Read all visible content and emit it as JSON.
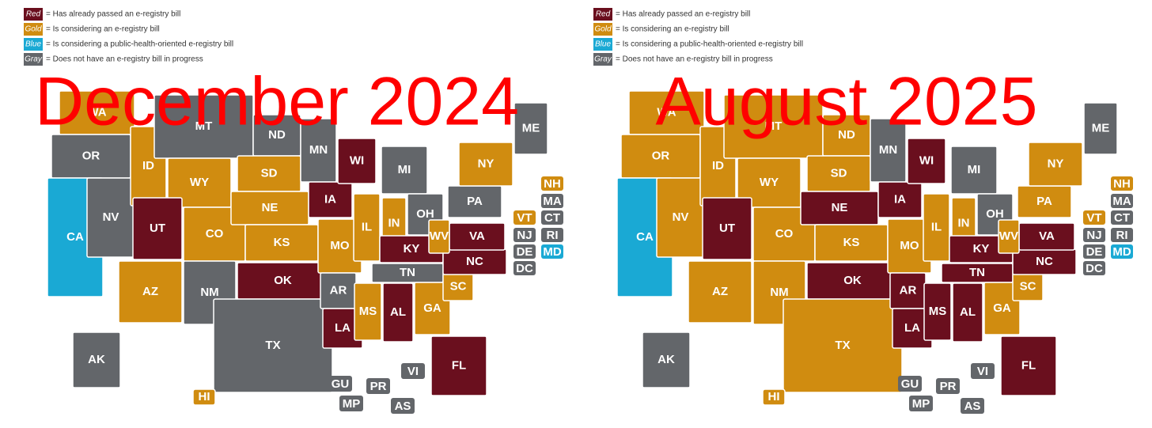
{
  "maps": [
    {
      "title": "December 2024",
      "legend": [
        {
          "label": "Red",
          "color": "#6a0f1e",
          "text": "= Has already passed an e-registry bill"
        },
        {
          "label": "Gold",
          "color": "#d08c10",
          "text": "= Is considering an e-registry bill"
        },
        {
          "label": "Blue",
          "color": "#1aa9d4",
          "text": "= Is considering a public-health-oriented e-registry bill"
        },
        {
          "label": "Gray",
          "color": "#63666a",
          "text": "= Does not have an e-registry bill in progress"
        }
      ],
      "states": [
        {
          "label": "WA",
          "status": "Gold"
        },
        {
          "label": "OR",
          "status": "Gray"
        },
        {
          "label": "CA",
          "status": "Blue"
        },
        {
          "label": "NV",
          "status": "Gray"
        },
        {
          "label": "ID",
          "status": "Gold"
        },
        {
          "label": "MT",
          "status": "Gray"
        },
        {
          "label": "WY",
          "status": "Gold"
        },
        {
          "label": "UT",
          "status": "Red"
        },
        {
          "label": "CO",
          "status": "Gold"
        },
        {
          "label": "AZ",
          "status": "Gold"
        },
        {
          "label": "NM",
          "status": "Gray"
        },
        {
          "label": "ND",
          "status": "Gray"
        },
        {
          "label": "SD",
          "status": "Gold"
        },
        {
          "label": "NE",
          "status": "Gold"
        },
        {
          "label": "KS",
          "status": "Gold"
        },
        {
          "label": "OK",
          "status": "Red"
        },
        {
          "label": "TX",
          "status": "Gray"
        },
        {
          "label": "MN",
          "status": "Gray"
        },
        {
          "label": "IA",
          "status": "Red"
        },
        {
          "label": "MO",
          "status": "Gold"
        },
        {
          "label": "AR",
          "status": "Gray"
        },
        {
          "label": "LA",
          "status": "Red"
        },
        {
          "label": "WI",
          "status": "Red"
        },
        {
          "label": "IL",
          "status": "Gold"
        },
        {
          "label": "IN",
          "status": "Gold"
        },
        {
          "label": "MI",
          "status": "Gray"
        },
        {
          "label": "OH",
          "status": "Gray"
        },
        {
          "label": "KY",
          "status": "Red"
        },
        {
          "label": "TN",
          "status": "Gray"
        },
        {
          "label": "MS",
          "status": "Gold"
        },
        {
          "label": "AL",
          "status": "Red"
        },
        {
          "label": "GA",
          "status": "Gold"
        },
        {
          "label": "FL",
          "status": "Red"
        },
        {
          "label": "SC",
          "status": "Gold"
        },
        {
          "label": "NC",
          "status": "Red"
        },
        {
          "label": "VA",
          "status": "Red"
        },
        {
          "label": "WV",
          "status": "Gold"
        },
        {
          "label": "PA",
          "status": "Gray"
        },
        {
          "label": "NY",
          "status": "Gold"
        },
        {
          "label": "ME",
          "status": "Gray"
        },
        {
          "label": "AK",
          "status": "Gray"
        },
        {
          "label": "HI",
          "status": "Gold"
        }
      ],
      "small_states": [
        {
          "label": "NH",
          "status": "Gold"
        },
        {
          "label": "MA",
          "status": "Gray"
        },
        {
          "label": "VT",
          "status": "Gold"
        },
        {
          "label": "CT",
          "status": "Gray"
        },
        {
          "label": "NJ",
          "status": "Gray"
        },
        {
          "label": "RI",
          "status": "Gray"
        },
        {
          "label": "DE",
          "status": "Gray"
        },
        {
          "label": "MD",
          "status": "Blue"
        },
        {
          "label": "DC",
          "status": "Gray"
        }
      ],
      "territories": [
        {
          "label": "GU",
          "status": "Gray"
        },
        {
          "label": "PR",
          "status": "Gray"
        },
        {
          "label": "VI",
          "status": "Gray"
        },
        {
          "label": "MP",
          "status": "Gray"
        },
        {
          "label": "AS",
          "status": "Gray"
        }
      ]
    },
    {
      "title": "August 2025",
      "legend": [
        {
          "label": "Red",
          "color": "#6a0f1e",
          "text": "= Has already passed an e-registry bill"
        },
        {
          "label": "Gold",
          "color": "#d08c10",
          "text": "= Is considering an e-registry bill"
        },
        {
          "label": "Blue",
          "color": "#1aa9d4",
          "text": "= Is considering a public-health-oriented e-registry bill"
        },
        {
          "label": "Gray",
          "color": "#63666a",
          "text": "= Does not have an e-registry bill in progress"
        }
      ],
      "states": [
        {
          "label": "WA",
          "status": "Gold"
        },
        {
          "label": "OR",
          "status": "Gold"
        },
        {
          "label": "CA",
          "status": "Blue"
        },
        {
          "label": "NV",
          "status": "Gold"
        },
        {
          "label": "ID",
          "status": "Gold"
        },
        {
          "label": "MT",
          "status": "Gold"
        },
        {
          "label": "WY",
          "status": "Gold"
        },
        {
          "label": "UT",
          "status": "Red"
        },
        {
          "label": "CO",
          "status": "Gold"
        },
        {
          "label": "AZ",
          "status": "Gold"
        },
        {
          "label": "NM",
          "status": "Gold"
        },
        {
          "label": "ND",
          "status": "Gold"
        },
        {
          "label": "SD",
          "status": "Gold"
        },
        {
          "label": "NE",
          "status": "Red"
        },
        {
          "label": "KS",
          "status": "Gold"
        },
        {
          "label": "OK",
          "status": "Red"
        },
        {
          "label": "TX",
          "status": "Gold"
        },
        {
          "label": "MN",
          "status": "Gray"
        },
        {
          "label": "IA",
          "status": "Red"
        },
        {
          "label": "MO",
          "status": "Gold"
        },
        {
          "label": "AR",
          "status": "Red"
        },
        {
          "label": "LA",
          "status": "Red"
        },
        {
          "label": "WI",
          "status": "Red"
        },
        {
          "label": "IL",
          "status": "Gold"
        },
        {
          "label": "IN",
          "status": "Gold"
        },
        {
          "label": "MI",
          "status": "Gray"
        },
        {
          "label": "OH",
          "status": "Gray"
        },
        {
          "label": "KY",
          "status": "Red"
        },
        {
          "label": "TN",
          "status": "Red"
        },
        {
          "label": "MS",
          "status": "Red"
        },
        {
          "label": "AL",
          "status": "Red"
        },
        {
          "label": "GA",
          "status": "Gold"
        },
        {
          "label": "FL",
          "status": "Red"
        },
        {
          "label": "SC",
          "status": "Gold"
        },
        {
          "label": "NC",
          "status": "Red"
        },
        {
          "label": "VA",
          "status": "Red"
        },
        {
          "label": "WV",
          "status": "Gold"
        },
        {
          "label": "PA",
          "status": "Gold"
        },
        {
          "label": "NY",
          "status": "Gold"
        },
        {
          "label": "ME",
          "status": "Gray"
        },
        {
          "label": "AK",
          "status": "Gray"
        },
        {
          "label": "HI",
          "status": "Gold"
        }
      ],
      "small_states": [
        {
          "label": "NH",
          "status": "Gold"
        },
        {
          "label": "MA",
          "status": "Gray"
        },
        {
          "label": "VT",
          "status": "Gold"
        },
        {
          "label": "CT",
          "status": "Gray"
        },
        {
          "label": "NJ",
          "status": "Gray"
        },
        {
          "label": "RI",
          "status": "Gray"
        },
        {
          "label": "DE",
          "status": "Gray"
        },
        {
          "label": "MD",
          "status": "Blue"
        },
        {
          "label": "DC",
          "status": "Gray"
        }
      ],
      "territories": [
        {
          "label": "GU",
          "status": "Gray"
        },
        {
          "label": "PR",
          "status": "Gray"
        },
        {
          "label": "VI",
          "status": "Gray"
        },
        {
          "label": "MP",
          "status": "Gray"
        },
        {
          "label": "AS",
          "status": "Gray"
        }
      ]
    }
  ]
}
